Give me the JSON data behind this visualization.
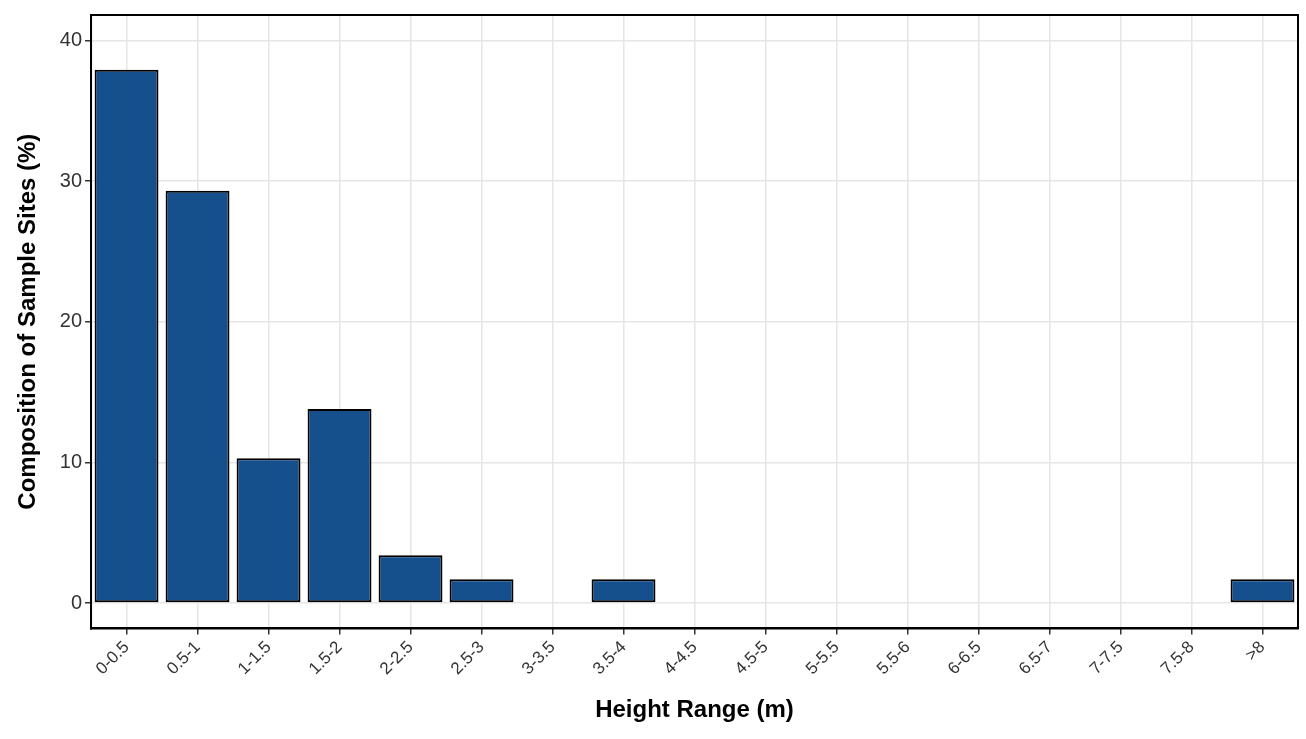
{
  "chart_data": {
    "type": "bar",
    "xlabel": "Height Range (m)",
    "ylabel": "Composition of Sample Sites (%)",
    "categories": [
      "0-0.5",
      "0.5-1",
      "1-1.5",
      "1.5-2",
      "2-2.5",
      "2.5-3",
      "3-3.5",
      "3.5-4",
      "4-4.5",
      "4.5-5",
      "5-5.5",
      "5.5-6",
      "6-6.5",
      "6.5-7",
      "7-7.5",
      "7.5-8",
      ">8"
    ],
    "values": [
      37.9,
      29.3,
      10.3,
      13.8,
      3.4,
      1.7,
      0,
      1.7,
      0,
      0,
      0,
      0,
      0,
      0,
      0,
      0,
      1.7
    ],
    "color": "#154f8c",
    "ylim": [
      -1.8,
      41.8
    ],
    "yticks": [
      0,
      10,
      20,
      30,
      40
    ],
    "grid": true,
    "legend": false
  }
}
